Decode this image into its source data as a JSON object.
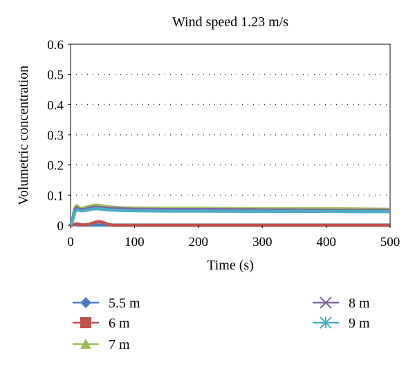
{
  "chart_data": {
    "type": "line",
    "title": "Wind speed 1.23 m/s",
    "xlabel": "Time (s)",
    "ylabel": "Volumetric concentration",
    "xlim": [
      0,
      500
    ],
    "ylim": [
      0,
      0.6
    ],
    "x_ticks": [
      "0",
      "100",
      "200",
      "300",
      "400",
      "500"
    ],
    "y_ticks": [
      "0",
      "0.1",
      "0.2",
      "0.3",
      "0.4",
      "0.5",
      "0.6"
    ],
    "grid": "horizontal dotted",
    "legend_position": "bottom",
    "series": [
      {
        "name": "5.5 m",
        "color": "#4a7ebb",
        "marker": "diamond",
        "x": [
          0,
          2,
          4,
          6,
          8,
          10,
          20,
          30,
          40,
          60,
          100,
          200,
          300,
          400,
          500
        ],
        "y": [
          0,
          0.003,
          0.004,
          0.003,
          0.002,
          0.001,
          0.001,
          0.001,
          0.001,
          0.001,
          0.001,
          0.001,
          0.001,
          0.001,
          0.001
        ]
      },
      {
        "name": "6 m",
        "color": "#c0504d",
        "marker": "square",
        "x": [
          0,
          3,
          6,
          8,
          10,
          15,
          20,
          30,
          40,
          45,
          50,
          55,
          60,
          65,
          70,
          80,
          100,
          200,
          300,
          400,
          500
        ],
        "y": [
          0,
          0.001,
          0.002,
          0.004,
          0.005,
          0.002,
          0.001,
          0.004,
          0.011,
          0.012,
          0.01,
          0.006,
          0.003,
          0.001,
          0.0,
          0.0,
          0.0,
          0.0,
          0.0,
          0.0,
          0.0
        ]
      },
      {
        "name": "7 m",
        "color": "#9bbb59",
        "marker": "triangle",
        "x": [
          0,
          2,
          4,
          6,
          8,
          10,
          12,
          15,
          20,
          25,
          30,
          35,
          40,
          45,
          50,
          60,
          80,
          100,
          150,
          200,
          300,
          400,
          500
        ],
        "y": [
          0,
          0.01,
          0.03,
          0.05,
          0.062,
          0.065,
          0.06,
          0.056,
          0.057,
          0.06,
          0.063,
          0.066,
          0.067,
          0.066,
          0.064,
          0.061,
          0.058,
          0.057,
          0.056,
          0.056,
          0.055,
          0.055,
          0.053
        ]
      },
      {
        "name": "8 m",
        "color": "#8064a2",
        "marker": "x",
        "x": [
          0,
          2,
          4,
          6,
          8,
          10,
          12,
          15,
          20,
          25,
          30,
          35,
          40,
          45,
          50,
          60,
          80,
          100,
          150,
          200,
          300,
          400,
          500
        ],
        "y": [
          0,
          0.008,
          0.025,
          0.043,
          0.055,
          0.058,
          0.055,
          0.052,
          0.052,
          0.054,
          0.057,
          0.059,
          0.06,
          0.059,
          0.058,
          0.056,
          0.054,
          0.053,
          0.052,
          0.052,
          0.051,
          0.05,
          0.049
        ]
      },
      {
        "name": "9 m",
        "color": "#4bacc6",
        "marker": "star",
        "x": [
          0,
          2,
          4,
          6,
          8,
          10,
          12,
          15,
          20,
          25,
          30,
          35,
          40,
          45,
          50,
          60,
          80,
          100,
          150,
          200,
          300,
          400,
          500
        ],
        "y": [
          0,
          0.007,
          0.022,
          0.038,
          0.048,
          0.051,
          0.05,
          0.048,
          0.048,
          0.05,
          0.052,
          0.054,
          0.055,
          0.054,
          0.053,
          0.051,
          0.049,
          0.048,
          0.047,
          0.047,
          0.046,
          0.046,
          0.045
        ]
      }
    ]
  }
}
